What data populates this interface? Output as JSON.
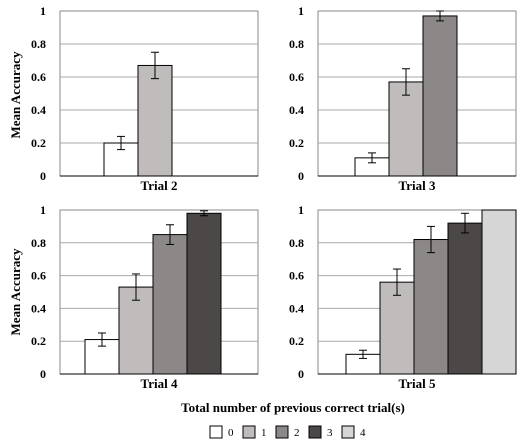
{
  "figure": {
    "shared_ylabel": "Mean Accuracy",
    "shared_xlabel": "Total number of previous correct trial(s)"
  },
  "legend": {
    "entries": [
      {
        "label": "0",
        "color": "#ffffff"
      },
      {
        "label": "1",
        "color": "#c0bcbc"
      },
      {
        "label": "2",
        "color": "#8c8888"
      },
      {
        "label": "3",
        "color": "#4d4848"
      },
      {
        "label": "4",
        "color": "#d6d6d6"
      }
    ]
  },
  "chart_data": [
    {
      "type": "bar",
      "title": "Trial 2",
      "ylabel": "Mean Accuracy",
      "ylim": [
        0,
        1
      ],
      "yticks": [
        "0",
        "0.2",
        "0.4",
        "0.6",
        "0.8",
        "1"
      ],
      "categories": [
        "0",
        "1"
      ],
      "values": [
        0.2,
        0.67
      ],
      "errors": [
        0.04,
        0.08
      ],
      "colors": [
        "#ffffff",
        "#c0bcbc"
      ],
      "grid": true
    },
    {
      "type": "bar",
      "title": "Trial 3",
      "ylabel": "",
      "ylim": [
        0,
        1
      ],
      "yticks": [
        "0",
        "0.2",
        "0.4",
        "0.6",
        "0.8",
        "1"
      ],
      "categories": [
        "0",
        "1",
        "2"
      ],
      "values": [
        0.11,
        0.57,
        0.97
      ],
      "errors": [
        0.03,
        0.08,
        0.03
      ],
      "colors": [
        "#ffffff",
        "#c0bcbc",
        "#8c8888"
      ],
      "grid": true
    },
    {
      "type": "bar",
      "title": "Trial 4",
      "ylabel": "Mean Accuracy",
      "ylim": [
        0,
        1
      ],
      "yticks": [
        "0",
        "0.2",
        "0.4",
        "0.6",
        "0.8",
        "1"
      ],
      "categories": [
        "0",
        "1",
        "2",
        "3"
      ],
      "values": [
        0.21,
        0.53,
        0.85,
        0.98
      ],
      "errors": [
        0.04,
        0.08,
        0.06,
        0.015
      ],
      "colors": [
        "#ffffff",
        "#c0bcbc",
        "#8c8888",
        "#4d4848"
      ],
      "grid": true
    },
    {
      "type": "bar",
      "title": "Trial 5",
      "ylabel": "",
      "ylim": [
        0,
        1
      ],
      "yticks": [
        "0",
        "0.2",
        "0.4",
        "0.6",
        "0.8",
        "1"
      ],
      "categories": [
        "0",
        "1",
        "2",
        "3",
        "4"
      ],
      "values": [
        0.12,
        0.56,
        0.82,
        0.92,
        1.0
      ],
      "errors": [
        0.025,
        0.08,
        0.08,
        0.06,
        0.0
      ],
      "colors": [
        "#ffffff",
        "#c0bcbc",
        "#8c8888",
        "#4d4848",
        "#d6d6d6"
      ],
      "grid": true
    }
  ]
}
